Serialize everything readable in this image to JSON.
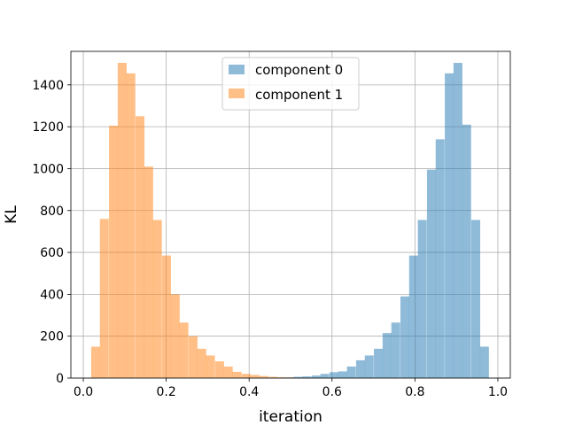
{
  "chart_data": {
    "type": "bar",
    "xlabel": "iteration",
    "ylabel": "KL",
    "xlim": [
      -0.03,
      1.03
    ],
    "ylim": [
      0,
      1560
    ],
    "xticks": [
      0.0,
      0.2,
      0.4,
      0.6,
      0.8,
      1.0
    ],
    "xtick_labels": [
      "0.0",
      "0.2",
      "0.4",
      "0.6",
      "0.8",
      "1.0"
    ],
    "yticks": [
      0,
      200,
      400,
      600,
      800,
      1000,
      1200,
      1400
    ],
    "ytick_labels": [
      "0",
      "200",
      "400",
      "600",
      "800",
      "1000",
      "1200",
      "1400"
    ],
    "grid": true,
    "legend_position": "top-center",
    "bin_width": 0.0214,
    "series": [
      {
        "name": "component 0",
        "color": "#1f77b4",
        "opacity": 0.5,
        "bin_starts": [
          0.487,
          0.508,
          0.529,
          0.551,
          0.572,
          0.594,
          0.615,
          0.636,
          0.658,
          0.679,
          0.701,
          0.722,
          0.743,
          0.765,
          0.786,
          0.807,
          0.829,
          0.85,
          0.872,
          0.893,
          0.914,
          0.936,
          0.957
        ],
        "values": [
          3,
          6,
          8,
          12,
          20,
          28,
          32,
          55,
          85,
          108,
          140,
          215,
          265,
          390,
          585,
          755,
          995,
          1140,
          1455,
          1505,
          1210,
          755,
          150
        ]
      },
      {
        "name": "component 1",
        "color": "#ff7f0e",
        "opacity": 0.5,
        "bin_starts": [
          0.019,
          0.04,
          0.062,
          0.083,
          0.104,
          0.126,
          0.147,
          0.168,
          0.19,
          0.211,
          0.232,
          0.254,
          0.275,
          0.296,
          0.318,
          0.339,
          0.36,
          0.382,
          0.403,
          0.424,
          0.446,
          0.467,
          0.488
        ],
        "values": [
          150,
          760,
          1205,
          1505,
          1455,
          1250,
          1010,
          755,
          585,
          400,
          265,
          200,
          140,
          108,
          80,
          55,
          30,
          20,
          15,
          10,
          6,
          4,
          3
        ]
      }
    ]
  }
}
